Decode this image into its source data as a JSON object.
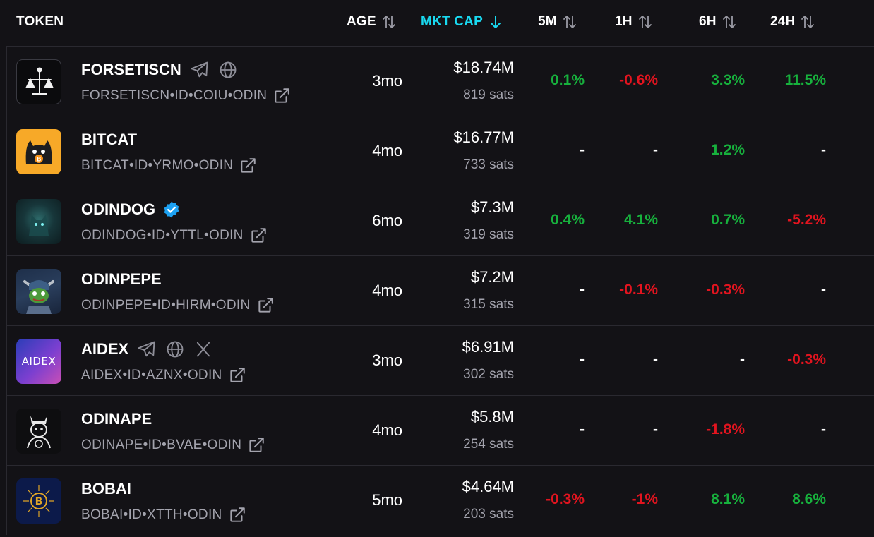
{
  "header": {
    "token": "TOKEN",
    "age": "AGE",
    "mkt_cap": "MKT CAP",
    "m5": "5M",
    "h1": "1H",
    "h6": "6H",
    "h24": "24H"
  },
  "colors": {
    "accent": "#19d9f0",
    "positive": "#17b13d",
    "negative": "#e2141f",
    "background": "#131216"
  },
  "rows": [
    {
      "name": "FORSETISCN",
      "id": "FORSETISCN•ID•COIU•ODIN",
      "age": "3mo",
      "mcap": "$18.74M",
      "sats": "819 sats",
      "m5": "0.1%",
      "h1": "-0.6%",
      "h6": "3.3%",
      "h24": "11.5%",
      "icons": [
        "telegram-icon",
        "globe-icon"
      ]
    },
    {
      "name": "BITCAT",
      "id": "BITCAT•ID•YRMO•ODIN",
      "age": "4mo",
      "mcap": "$16.77M",
      "sats": "733 sats",
      "m5": "-",
      "h1": "-",
      "h6": "1.2%",
      "h24": "-",
      "icons": []
    },
    {
      "name": "ODINDOG",
      "id": "ODINDOG•ID•YTTL•ODIN",
      "age": "6mo",
      "mcap": "$7.3M",
      "sats": "319 sats",
      "m5": "0.4%",
      "h1": "4.1%",
      "h6": "0.7%",
      "h24": "-5.2%",
      "icons": [
        "verified-badge-icon"
      ]
    },
    {
      "name": "ODINPEPE",
      "id": "ODINPEPE•ID•HIRM•ODIN",
      "age": "4mo",
      "mcap": "$7.2M",
      "sats": "315 sats",
      "m5": "-",
      "h1": "-0.1%",
      "h6": "-0.3%",
      "h24": "-",
      "icons": []
    },
    {
      "name": "AIDEX",
      "id": "AIDEX•ID•AZNX•ODIN",
      "age": "3mo",
      "mcap": "$6.91M",
      "sats": "302 sats",
      "m5": "-",
      "h1": "-",
      "h6": "-",
      "h24": "-0.3%",
      "icons": [
        "telegram-icon",
        "globe-icon",
        "x-icon"
      ],
      "logo_text": "AIDEX"
    },
    {
      "name": "ODINAPE",
      "id": "ODINAPE•ID•BVAE•ODIN",
      "age": "4mo",
      "mcap": "$5.8M",
      "sats": "254 sats",
      "m5": "-",
      "h1": "-",
      "h6": "-1.8%",
      "h24": "-",
      "icons": []
    },
    {
      "name": "BOBAI",
      "id": "BOBAI•ID•XTTH•ODIN",
      "age": "5mo",
      "mcap": "$4.64M",
      "sats": "203 sats",
      "m5": "-0.3%",
      "h1": "-1%",
      "h6": "8.1%",
      "h24": "8.6%",
      "icons": []
    }
  ]
}
